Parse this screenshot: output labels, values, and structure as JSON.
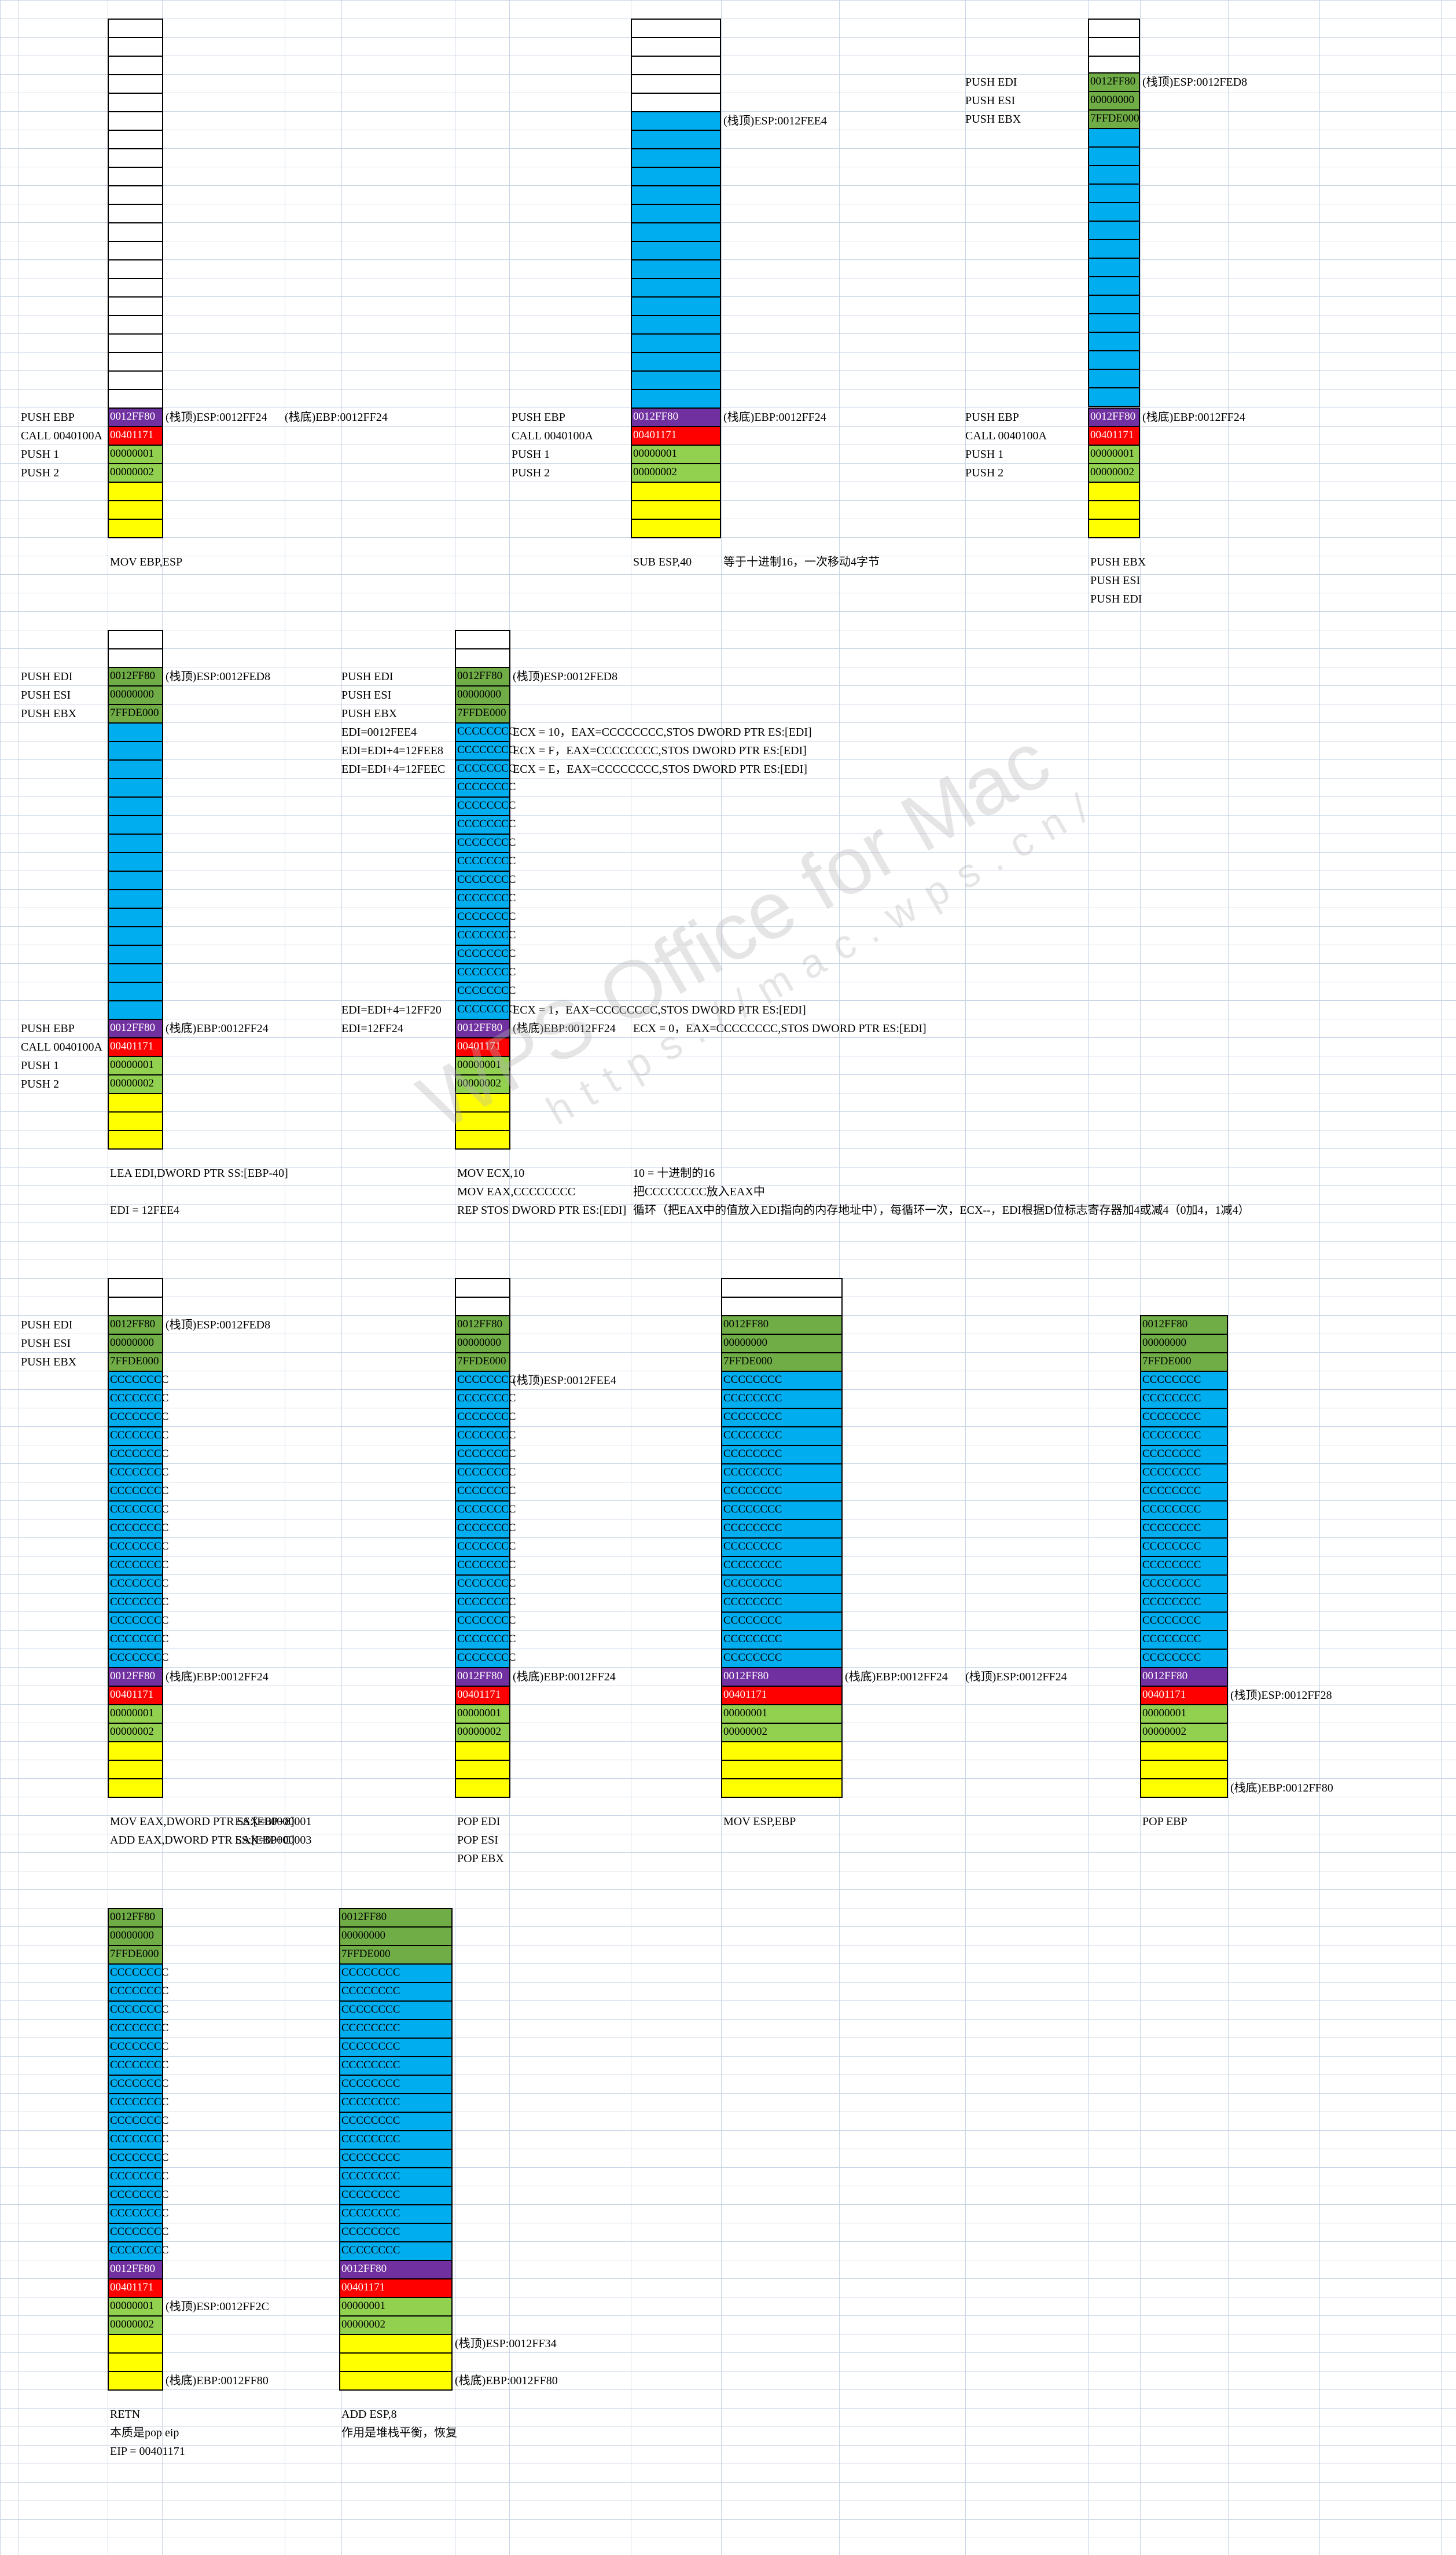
{
  "watermark": {
    "line1": "WPS Office for Mac",
    "line2": "https://mac.wps.cn/"
  },
  "colors": {
    "white": "#ffffff",
    "blue": "#00aeef",
    "green": "#70ad47",
    "lightgreen": "#92d050",
    "purple": "#7030a0",
    "red": "#ff0000",
    "yellow": "#ffff00"
  },
  "texts": [
    "PUSH EBP",
    "CALL 0040100A",
    "PUSH 1",
    "PUSH 2",
    "(栈顶)ESP:0012FF24",
    "(栈底)EBP:0012FF24",
    "MOV EBP,ESP",
    "PUSH EBP",
    "CALL 0040100A",
    "PUSH 1",
    "PUSH 2",
    "(栈顶)ESP:0012FEE4",
    "(栈底)EBP:0012FF24",
    "SUB ESP,40",
    "等于十进制16，一次移动4字节",
    "PUSH EDI",
    "PUSH ESI",
    "PUSH EBX",
    "(栈顶)ESP:0012FED8",
    "PUSH EBP",
    "CALL 0040100A",
    "PUSH 1",
    "PUSH 2",
    "(栈底)EBP:0012FF24",
    "PUSH EBX",
    "PUSH ESI",
    "PUSH EDI",
    "PUSH EDI",
    "PUSH ESI",
    "PUSH EBX",
    "(栈顶)ESP:0012FED8",
    "PUSH EBP",
    "CALL 0040100A",
    "PUSH 1",
    "PUSH 2",
    "(栈底)EBP:0012FF24",
    "LEA EDI,DWORD PTR SS:[EBP-40]",
    "EDI = 12FEE4",
    "PUSH EDI",
    "PUSH ESI",
    "PUSH EBX",
    "EDI=0012FEE4",
    "EDI=EDI+4=12FEE8",
    "EDI=EDI+4=12FEEC",
    "EDI=EDI+4=12FF20",
    "EDI=12FF24",
    "(栈顶)ESP:0012FED8",
    "ECX = 10，EAX=CCCCCCCC,STOS DWORD PTR ES:[EDI]",
    "ECX = F，EAX=CCCCCCCC,STOS DWORD PTR ES:[EDI]",
    "ECX = E，EAX=CCCCCCCC,STOS DWORD PTR ES:[EDI]",
    "ECX = 1，EAX=CCCCCCCC,STOS DWORD PTR ES:[EDI]",
    "(栈底)EBP:0012FF24",
    "ECX = 0，EAX=CCCCCCCC,STOS DWORD PTR ES:[EDI]",
    "MOV ECX,10",
    "10 = 十进制的16",
    "MOV EAX,CCCCCCCC",
    "把CCCCCCCC放入EAX中",
    "REP STOS DWORD PTR ES:[EDI]",
    "循环（把EAX中的值放入EDI指向的内存地址中），每循环一次，ECX--，EDI根据D位标志寄存器加4或减4（0加4，1减4）",
    "PUSH EDI",
    "PUSH ESI",
    "PUSH EBX",
    "(栈顶)ESP:0012FED8",
    "(栈底)EBP:0012FF24",
    "MOV EAX,DWORD PTR SS:[EBP+8]",
    "EAX=00000001",
    "ADD EAX,DWORD PTR SS:[EBP+C]",
    "EAX=00000003",
    "(栈顶)ESP:0012FEE4",
    "(栈底)EBP:0012FF24",
    "POP EDI",
    "POP ESI",
    "POP EBX",
    "(栈底)EBP:0012FF24",
    "(栈顶)ESP:0012FF24",
    "MOV ESP,EBP",
    "(栈顶)ESP:0012FF28",
    "(栈底)EBP:0012FF80",
    "POP EBP",
    "(栈顶)ESP:0012FF2C",
    "(栈底)EBP:0012FF80",
    "RETN",
    "本质是pop eip",
    "EIP = 00401171",
    "(栈顶)ESP:0012FF34",
    "(栈底)EBP:0012FF80",
    "ADD ESP,8",
    "作用是堆栈平衡，恢复"
  ],
  "cells": [
    "0012FF80",
    "00401171",
    "00000001",
    "00000002",
    "0012FF80",
    "00401171",
    "00000001",
    "00000002",
    "0012FF80",
    "00000000",
    "7FFDE000",
    "0012FF80",
    "00401171",
    "00000001",
    "00000002",
    "0012FF80",
    "00000000",
    "7FFDE000",
    "0012FF80",
    "00401171",
    "00000001",
    "00000002",
    "0012FF80",
    "00000000",
    "7FFDE000",
    "CCCCCCCC",
    "0012FF80",
    "00401171",
    "00000001",
    "00000002",
    "0012FF80",
    "00000000",
    "7FFDE000",
    "CCCCCCCC",
    "0012FF80",
    "00401171",
    "00000001",
    "00000002",
    "0012FF80",
    "00000000",
    "7FFDE000",
    "CCCCCCCC",
    "0012FF80",
    "00401171",
    "00000001",
    "00000002",
    "0012FF80",
    "00000000",
    "7FFDE000",
    "CCCCCCCC",
    "0012FF80",
    "00401171",
    "00000001",
    "00000002",
    "0012FF80",
    "00000000",
    "7FFDE000",
    "CCCCCCCC",
    "0012FF80",
    "00401171",
    "00000001",
    "00000002",
    "0012FF80",
    "00000000",
    "7FFDE000",
    "CCCCCCCC",
    "0012FF80",
    "00401171",
    "00000001",
    "00000002",
    "0012FF80",
    "00000000",
    "7FFDE000",
    "CCCCCCCC",
    "0012FF80",
    "00401171",
    "00000001",
    "00000002"
  ]
}
